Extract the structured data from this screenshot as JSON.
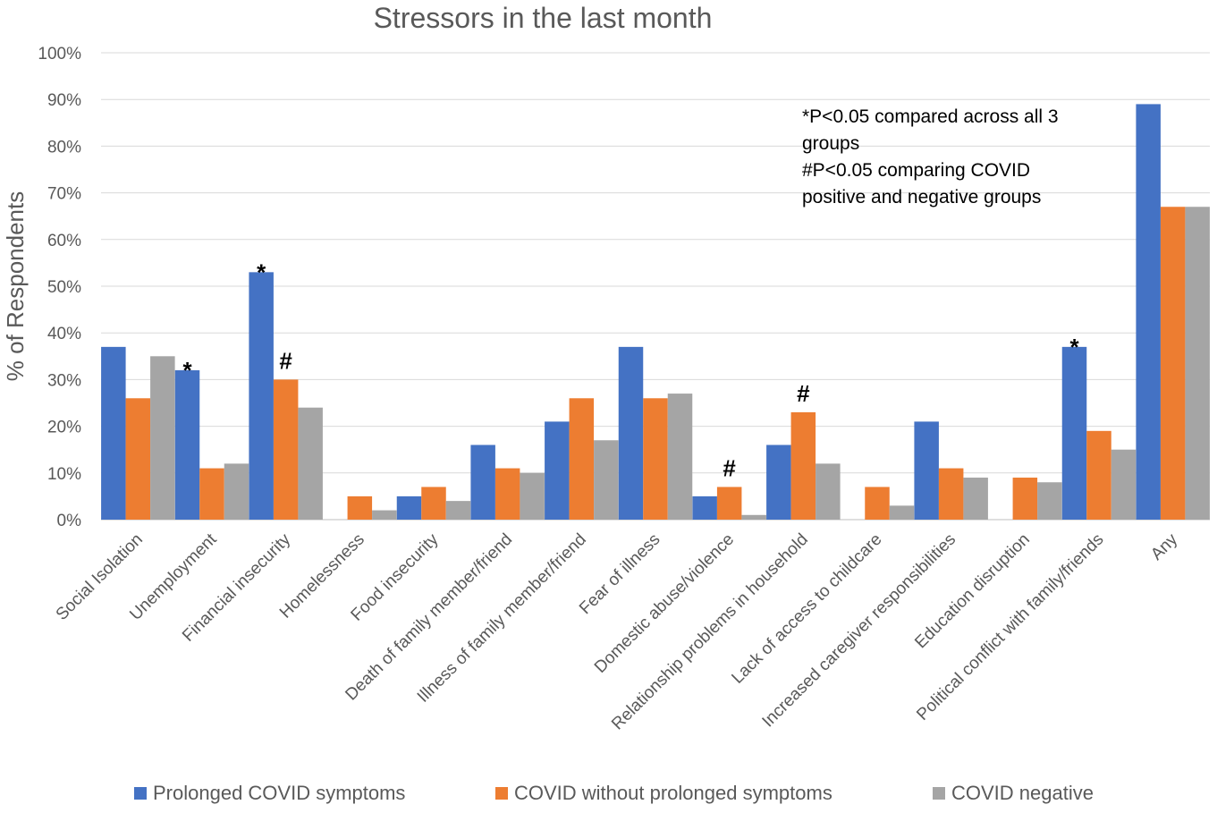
{
  "chart_data": {
    "type": "bar",
    "title": "Stressors in the last month",
    "xlabel": "",
    "ylabel": "% of Respondents",
    "ylim": [
      0,
      100
    ],
    "yticks": [
      "0%",
      "10%",
      "20%",
      "30%",
      "40%",
      "50%",
      "60%",
      "70%",
      "80%",
      "90%",
      "100%"
    ],
    "categories": [
      "Social Isolation",
      "Unemployment",
      "Financial insecurity",
      "Homelessness",
      "Food insecurity",
      "Death of family member/friend",
      "Illness of family member/friend",
      "Fear of illness",
      "Domestic abuse/violence",
      "Relationship problems in household",
      "Lack of access to childcare",
      "Increased caregiver responsibilities",
      "Education disruption",
      "Political conflict with family/friends",
      "Any"
    ],
    "series": [
      {
        "name": "Prolonged COVID symptoms",
        "color": "#4472C4",
        "values": [
          37,
          32,
          53,
          0,
          5,
          16,
          21,
          37,
          5,
          16,
          0,
          21,
          0,
          37,
          89
        ]
      },
      {
        "name": "COVID without prolonged symptoms",
        "color": "#ED7D31",
        "values": [
          26,
          11,
          30,
          5,
          7,
          11,
          26,
          26,
          7,
          23,
          7,
          11,
          9,
          19,
          67
        ]
      },
      {
        "name": "COVID negative",
        "color": "#A5A5A5",
        "values": [
          35,
          12,
          24,
          2,
          4,
          10,
          17,
          27,
          1,
          12,
          3,
          9,
          8,
          15,
          67
        ]
      }
    ],
    "markers": [
      {
        "text": "*",
        "category_index": 1,
        "series_index": 0
      },
      {
        "text": "*",
        "category_index": 2,
        "series_index": 0
      },
      {
        "text": "#",
        "category_index": 2,
        "series_index": 1
      },
      {
        "text": "#",
        "category_index": 8,
        "series_index": 1
      },
      {
        "text": "#",
        "category_index": 9,
        "series_index": 1
      },
      {
        "text": "*",
        "category_index": 13,
        "series_index": 0
      }
    ],
    "annotation": {
      "line1": "*P<0.05 compared across all 3",
      "line2": "groups",
      "line3": "#P<0.05 comparing COVID",
      "line4": "positive and negative groups"
    },
    "legend": [
      "Prolonged COVID symptoms",
      "COVID without prolonged symptoms",
      "COVID negative"
    ],
    "legend_position": "bottom",
    "grid": true
  }
}
